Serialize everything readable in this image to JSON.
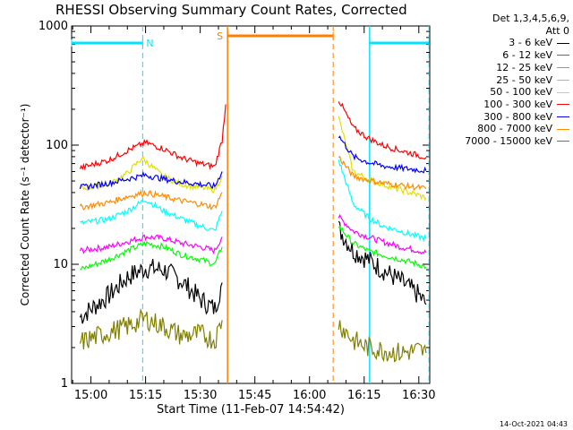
{
  "chart_data": {
    "type": "line",
    "title": "RHESSI Observing Summary Count Rates, Corrected",
    "xlabel": "Start Time (11-Feb-07 14:54:42)",
    "ylabel": "Corrected Count Rate (s⁻¹ detector⁻¹)",
    "yscale": "log",
    "ylim": [
      1,
      1000
    ],
    "y_ticks": [
      "1",
      "10",
      "100",
      "1000"
    ],
    "x_tick_labels": [
      "15:00",
      "15:15",
      "15:30",
      "15:45",
      "16:00",
      "16:15",
      "16:30"
    ],
    "x_ticks_min": [
      900,
      915,
      930,
      945,
      960,
      975,
      990
    ],
    "xlim_min": [
      894.7,
      993
    ],
    "legend_header": [
      "Det 1,3,4,5,6,9,",
      "Att 0"
    ],
    "legend_position": "right",
    "series": [
      {
        "name": "3 - 6 keV",
        "color": "#000000",
        "segments": [
          [
            [
              897,
              3.6
            ],
            [
              905,
              5.5
            ],
            [
              910,
              7.8
            ],
            [
              915,
              9.3
            ],
            [
              920,
              9.0
            ],
            [
              925,
              7.2
            ],
            [
              930,
              5.1
            ],
            [
              934,
              4.2
            ],
            [
              936,
              7.0
            ]
          ],
          [
            [
              968,
              20
            ],
            [
              972,
              13
            ],
            [
              976,
              11
            ],
            [
              980,
              9
            ],
            [
              985,
              7.2
            ],
            [
              990,
              5.5
            ],
            [
              992,
              4.6
            ]
          ]
        ]
      },
      {
        "name": "6 - 12 keV",
        "color": "#ff00ff",
        "segments": [
          [
            [
              897,
              13
            ],
            [
              905,
              14
            ],
            [
              910,
              15.5
            ],
            [
              915,
              17
            ],
            [
              920,
              16.5
            ],
            [
              925,
              15
            ],
            [
              930,
              14
            ],
            [
              934,
              13
            ],
            [
              936,
              17
            ]
          ],
          [
            [
              968,
              25
            ],
            [
              972,
              19
            ],
            [
              976,
              17
            ],
            [
              980,
              15.5
            ],
            [
              985,
              14
            ],
            [
              990,
              13
            ],
            [
              992,
              12.5
            ]
          ]
        ]
      },
      {
        "name": "12 - 25 keV",
        "color": "#00ff00",
        "segments": [
          [
            [
              897,
              9
            ],
            [
              905,
              11
            ],
            [
              910,
              13
            ],
            [
              915,
              15
            ],
            [
              920,
              14
            ],
            [
              925,
              12
            ],
            [
              930,
              11
            ],
            [
              934,
              10
            ],
            [
              936,
              14
            ]
          ],
          [
            [
              968,
              21
            ],
            [
              972,
              15
            ],
            [
              976,
              13
            ],
            [
              980,
              12
            ],
            [
              985,
              11
            ],
            [
              990,
              10
            ],
            [
              992,
              9.5
            ]
          ]
        ]
      },
      {
        "name": "25 - 50 keV",
        "color": "#00ffff",
        "segments": [
          [
            [
              897,
              22
            ],
            [
              905,
              24
            ],
            [
              910,
              28
            ],
            [
              915,
              35
            ],
            [
              920,
              28
            ],
            [
              925,
              24
            ],
            [
              930,
              21
            ],
            [
              934,
              19
            ],
            [
              936,
              28
            ]
          ],
          [
            [
              968,
              75
            ],
            [
              972,
              32
            ],
            [
              976,
              25
            ],
            [
              980,
              21
            ],
            [
              985,
              19
            ],
            [
              990,
              17
            ],
            [
              992,
              16.5
            ]
          ]
        ]
      },
      {
        "name": "50 - 100 keV",
        "color": "#e0e000",
        "segments": [
          [
            [
              897,
              43
            ],
            [
              905,
              47
            ],
            [
              910,
              58
            ],
            [
              914,
              78
            ],
            [
              917,
              65
            ],
            [
              920,
              54
            ],
            [
              925,
              47
            ],
            [
              930,
              44
            ],
            [
              934,
              42
            ],
            [
              936,
              55
            ]
          ],
          [
            [
              968,
              170
            ],
            [
              972,
              60
            ],
            [
              976,
              52
            ],
            [
              980,
              47
            ],
            [
              985,
              42
            ],
            [
              990,
              38
            ],
            [
              992,
              36
            ]
          ]
        ]
      },
      {
        "name": "100 - 300 keV",
        "color": "#ff0000",
        "segments": [
          [
            [
              897,
              64
            ],
            [
              905,
              75
            ],
            [
              910,
              90
            ],
            [
              915,
              105
            ],
            [
              920,
              93
            ],
            [
              925,
              78
            ],
            [
              930,
              70
            ],
            [
              934,
              66
            ],
            [
              936,
              110
            ],
            [
              937,
              220
            ]
          ],
          [
            [
              968,
              240
            ],
            [
              972,
              140
            ],
            [
              976,
              115
            ],
            [
              980,
              100
            ],
            [
              985,
              90
            ],
            [
              990,
              82
            ],
            [
              992,
              79
            ]
          ]
        ]
      },
      {
        "name": "300 - 800 keV",
        "color": "#0000ff",
        "segments": [
          [
            [
              897,
              44
            ],
            [
              905,
              48
            ],
            [
              910,
              52
            ],
            [
              915,
              56
            ],
            [
              920,
              52
            ],
            [
              925,
              49
            ],
            [
              930,
              47
            ],
            [
              934,
              45
            ],
            [
              936,
              60
            ]
          ],
          [
            [
              968,
              120
            ],
            [
              972,
              80
            ],
            [
              976,
              72
            ],
            [
              980,
              67
            ],
            [
              985,
              64
            ],
            [
              990,
              62
            ],
            [
              992,
              61
            ]
          ]
        ]
      },
      {
        "name": "800 - 7000 keV",
        "color": "#ff8c00",
        "segments": [
          [
            [
              897,
              30
            ],
            [
              905,
              33
            ],
            [
              910,
              37
            ],
            [
              915,
              40
            ],
            [
              920,
              37
            ],
            [
              925,
              34
            ],
            [
              930,
              32
            ],
            [
              934,
              30
            ],
            [
              936,
              40
            ]
          ],
          [
            [
              968,
              80
            ],
            [
              972,
              55
            ],
            [
              976,
              51
            ],
            [
              980,
              48
            ],
            [
              985,
              46
            ],
            [
              990,
              44
            ],
            [
              992,
              43
            ]
          ]
        ]
      },
      {
        "name": "7000 - 15000 keV",
        "color": "#808000",
        "segments": [
          [
            [
              897,
              2.2
            ],
            [
              905,
              2.7
            ],
            [
              910,
              3.0
            ],
            [
              915,
              3.5
            ],
            [
              920,
              3.0
            ],
            [
              925,
              2.5
            ],
            [
              930,
              2.6
            ],
            [
              934,
              2.3
            ],
            [
              936,
              3.4
            ]
          ],
          [
            [
              968,
              3.2
            ],
            [
              972,
              2.3
            ],
            [
              976,
              2.0
            ],
            [
              980,
              1.9
            ],
            [
              985,
              1.8
            ],
            [
              990,
              1.9
            ],
            [
              992,
              1.8
            ]
          ]
        ]
      }
    ],
    "flags": [
      {
        "label": "N",
        "color": "#00e5ff",
        "x_min": [
          894.7,
          914.2
        ]
      },
      {
        "label": "S",
        "color": "#ff8000",
        "x_min": [
          937.5,
          966.5
        ]
      },
      {
        "label": "",
        "color": "#00e5ff",
        "x_min": [
          976.5,
          992.8
        ]
      }
    ],
    "markers_solid": [
      {
        "x_min": 937.5,
        "color": "#ff8000"
      },
      {
        "x_min": 976.5,
        "color": "#00e5ff"
      }
    ],
    "markers_dashed": [
      {
        "x_min": 914.2,
        "color": "#00e5ff"
      },
      {
        "x_min": 966.5,
        "color": "#ff8000"
      },
      {
        "x_min": 992.8,
        "color": "#00e5ff"
      }
    ]
  },
  "footer": {
    "timestamp": "14-Oct-2021 04:43"
  }
}
